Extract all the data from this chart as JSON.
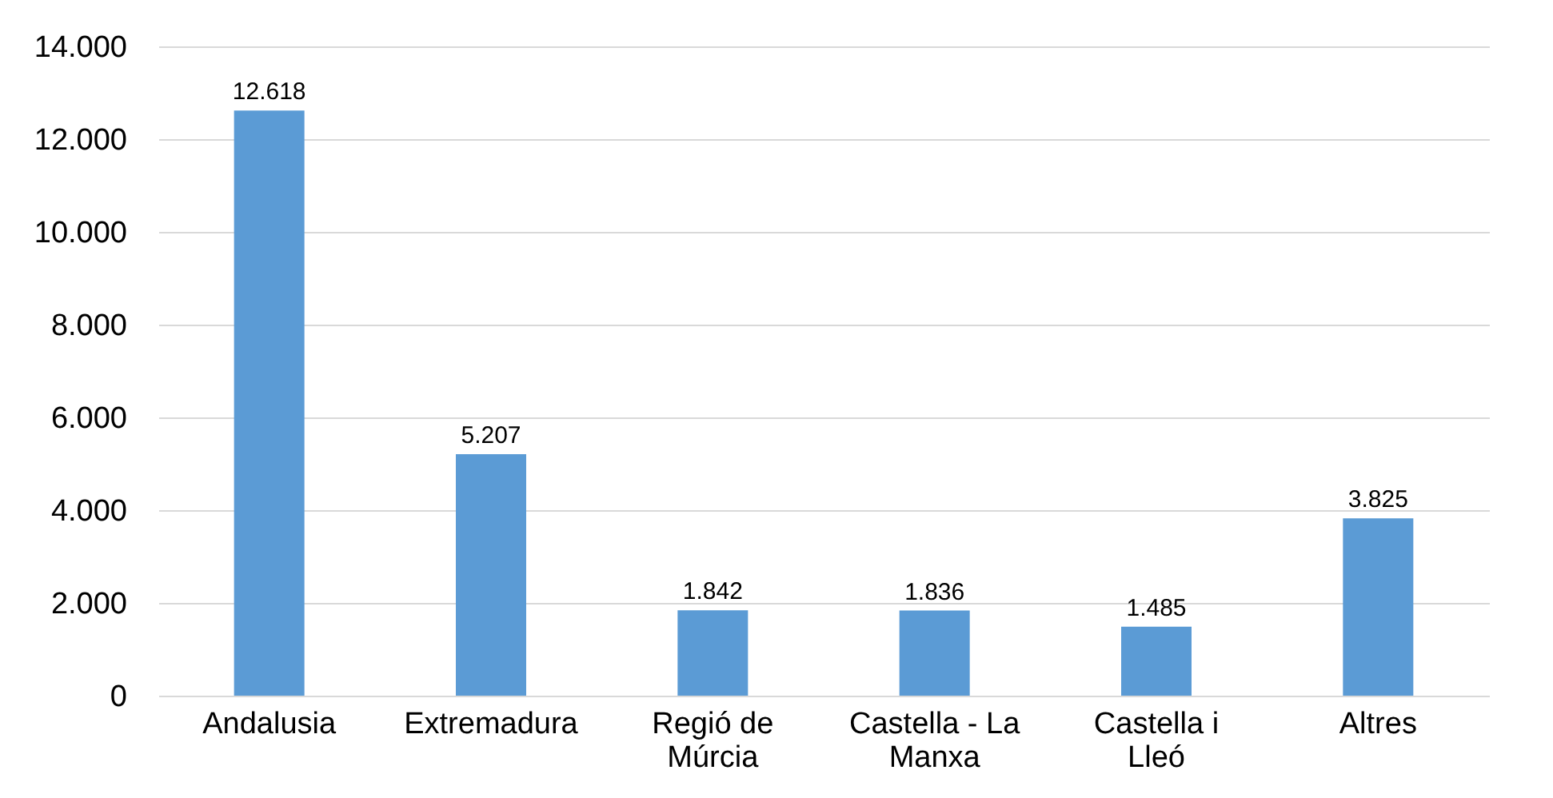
{
  "chart_data": {
    "type": "bar",
    "categories": [
      "Andalusia",
      "Extremadura",
      "Regió de Múrcia",
      "Castella - La Manxa",
      "Castella i Lleó",
      "Altres"
    ],
    "values": [
      12618,
      5207,
      1842,
      1836,
      1485,
      3825
    ],
    "value_labels": [
      "12.618",
      "5.207",
      "1.842",
      "1.836",
      "1.485",
      "3.825"
    ],
    "color": "#5b9bd5",
    "ylim": [
      0,
      14000
    ],
    "yticks": [
      {
        "value": 0,
        "label": "0"
      },
      {
        "value": 2000,
        "label": "2.000"
      },
      {
        "value": 4000,
        "label": "4.000"
      },
      {
        "value": 6000,
        "label": "6.000"
      },
      {
        "value": 8000,
        "label": "8.000"
      },
      {
        "value": 10000,
        "label": "10.000"
      },
      {
        "value": 12000,
        "label": "12.000"
      },
      {
        "value": 14000,
        "label": "14.000"
      }
    ],
    "grid": "y"
  }
}
